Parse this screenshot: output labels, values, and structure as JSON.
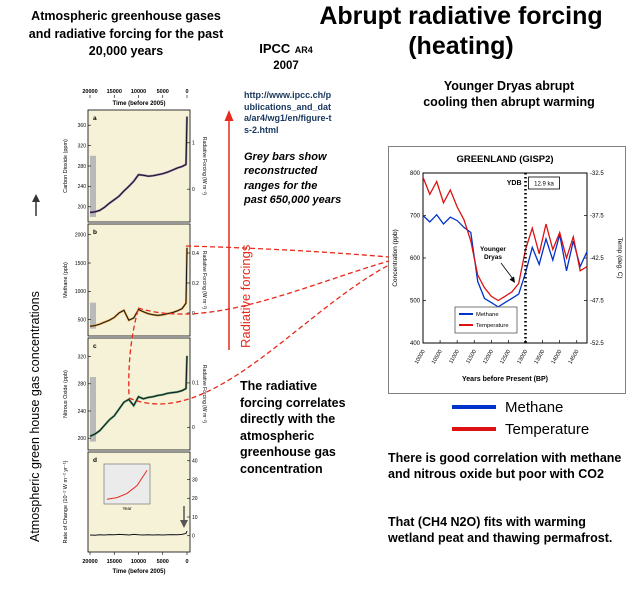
{
  "colors": {
    "accent_red": "#e8291c",
    "url_blue": "#17365d",
    "figure_panel_bg": "#f6f2d8",
    "methane_blue": "#0033cc",
    "temperature_red": "#dd1111"
  },
  "slide": {
    "left_heading": "Atmospheric greenhouse gases and radiative forcing for the past 20,000 years",
    "title_line1": "Abrupt radiative forcing",
    "title_line2": "(heating)",
    "source": {
      "name": "IPCC",
      "edition": "AR4",
      "year": "2007"
    },
    "url": "http://www.ipcc.ch/publications_and_data/ar4/wg1/en/figure-ts-2.html",
    "grey_bars_note": "Grey bars show reconstructed ranges for the past 650,000 years",
    "radiative_forcings_label": "Radiative forcings",
    "ghg_axis_label": "Atmospheric green house gas concentrations",
    "younger_dryas_note": "Younger Dryas abrupt cooling then abrupt warming",
    "correlation_note": "The radiative forcing correlates directly with the atmospheric greenhouse gas concentration",
    "right_note1": "There is good correlation with methane and nitrous oxide but poor with CO2",
    "right_note2": "That (CH4 N2O) fits with warming wetland peat and thawing permafrost.",
    "legend": [
      {
        "label": "Methane",
        "color": "#0033cc"
      },
      {
        "label": "Temperature",
        "color": "#dd1111"
      }
    ]
  },
  "chart_data": [
    {
      "id": "co2",
      "type": "line",
      "panel_letter": "a",
      "ylabel": "Carbon Dioxide (ppm)",
      "ylabel_right": "Radiative Forcing (W m⁻²)",
      "xlabel": "Time (before 2005)",
      "xlim": [
        20000,
        0
      ],
      "ylim": [
        180,
        380
      ],
      "ylim_right": [
        -0.6,
        1.6
      ],
      "x_ticks": [
        20000,
        15000,
        10000,
        5000,
        0
      ],
      "y_ticks": [
        200,
        240,
        280,
        320,
        360
      ],
      "y_ticks_right": [
        0,
        1
      ],
      "x": [
        20000,
        19000,
        18000,
        17000,
        16000,
        15000,
        14000,
        13000,
        12000,
        11000,
        10000,
        9000,
        8000,
        7000,
        6000,
        5000,
        4000,
        3000,
        2000,
        1000,
        200,
        0
      ],
      "values": [
        189,
        190,
        193,
        199,
        207,
        214,
        221,
        231,
        240,
        250,
        263,
        262,
        260,
        261,
        263,
        265,
        268,
        272,
        276,
        279,
        283,
        377
      ],
      "line_color": "#14141c",
      "accent_color": "#7b52a5",
      "grey_bar": {
        "y_from": 180,
        "y_to": 300
      }
    },
    {
      "id": "ch4",
      "type": "line",
      "panel_letter": "b",
      "ylabel": "Methane (ppb)",
      "ylabel_right": "Radiative Forcing (W m⁻²)",
      "xlabel": "Time (before 2005)",
      "xlim": [
        20000,
        0
      ],
      "ylim": [
        300,
        2100
      ],
      "ylim_right": [
        -0.12,
        0.56
      ],
      "x_ticks": [
        20000,
        15000,
        10000,
        5000,
        0
      ],
      "y_ticks": [
        500,
        1000,
        1500,
        2000
      ],
      "y_ticks_right": [
        0,
        0.2,
        0.4
      ],
      "x": [
        20000,
        19000,
        18000,
        17000,
        16000,
        15000,
        14000,
        13000,
        12000,
        11000,
        10000,
        9000,
        8000,
        7000,
        6000,
        5000,
        4000,
        3000,
        2000,
        1000,
        200,
        0
      ],
      "values": [
        385,
        395,
        420,
        455,
        490,
        540,
        620,
        665,
        490,
        530,
        680,
        640,
        605,
        585,
        575,
        585,
        605,
        625,
        655,
        695,
        790,
        1770
      ],
      "line_color": "#14141c",
      "accent_color": "#e09020",
      "grey_bar": {
        "y_from": 340,
        "y_to": 800
      }
    },
    {
      "id": "n2o",
      "type": "line",
      "panel_letter": "c",
      "ylabel": "Nitrous Oxide (ppb)",
      "ylabel_right": "Radiative Forcing (W m⁻²)",
      "xlabel": "Time (before 2005)",
      "xlim": [
        20000,
        0
      ],
      "ylim": [
        190,
        340
      ],
      "ylim_right": [
        -0.04,
        0.19
      ],
      "x_ticks": [
        20000,
        15000,
        10000,
        5000,
        0
      ],
      "y_ticks": [
        200,
        240,
        280,
        320
      ],
      "y_ticks_right": [
        0,
        0.1
      ],
      "x": [
        20000,
        19000,
        18000,
        17000,
        16000,
        15000,
        14000,
        13000,
        12000,
        11000,
        10000,
        9000,
        8000,
        7000,
        6000,
        5000,
        4000,
        3000,
        2000,
        1000,
        200,
        0
      ],
      "values": [
        203,
        206,
        211,
        219,
        227,
        233,
        243,
        253,
        257,
        248,
        261,
        258,
        260,
        261,
        263,
        264,
        266,
        267,
        268,
        270,
        273,
        321
      ],
      "line_color": "#14141c",
      "accent_color": "#2e8b57",
      "grey_bar": {
        "y_from": 195,
        "y_to": 290
      }
    },
    {
      "id": "rate",
      "type": "line",
      "panel_letter": "d",
      "ylabel": "Rate of Change (10⁻² W m⁻² yr⁻¹)",
      "ylabel_right": "",
      "xlabel": "Time (before 2005)",
      "xlim": [
        20000,
        0
      ],
      "ylim": [
        -6,
        42
      ],
      "ylim_right": [
        -6,
        42
      ],
      "x_ticks": [
        20000,
        15000,
        10000,
        5000,
        0
      ],
      "y_ticks": [],
      "y_ticks_right": [
        0,
        10,
        20,
        30,
        40
      ],
      "x": [
        20000,
        19000,
        18000,
        17000,
        16000,
        15000,
        14000,
        13000,
        12000,
        11000,
        10000,
        9000,
        8000,
        7000,
        6000,
        5000,
        4000,
        3000,
        2000,
        1000,
        200,
        0
      ],
      "values": [
        0.4,
        0.3,
        0.5,
        0.4,
        0.6,
        0.5,
        0.7,
        0.6,
        0.4,
        0.7,
        0.5,
        0.4,
        0.5,
        0.4,
        0.5,
        0.4,
        0.5,
        0.6,
        0.5,
        0.7,
        1.2,
        2.5
      ],
      "line_color": "#14141c",
      "inset": {
        "xlabel": "Year",
        "x": [
          1900,
          1925,
          1950,
          1975,
          2000
        ],
        "values": [
          2,
          4,
          9,
          18,
          36
        ],
        "line_color": "#e8291c"
      }
    },
    {
      "id": "gisp2",
      "type": "line",
      "title": "GREENLAND (GISP2)",
      "xlabel": "Years before Present (BP)",
      "ylabel_left": "Concentration (ppb)",
      "ylabel_right": "Temp (deg. C)",
      "xlim": [
        10000,
        14800
      ],
      "ylim_left": [
        400,
        800
      ],
      "ylim_right": [
        -52.5,
        -32.5
      ],
      "x_ticks": [
        10000,
        10500,
        11000,
        11500,
        12000,
        12500,
        13000,
        13500,
        14000,
        14500
      ],
      "y_ticks_left": [
        400,
        500,
        600,
        700,
        800
      ],
      "y_ticks_right": [
        -32.5,
        -37.5,
        -42.5,
        -47.5,
        -52.5
      ],
      "ydb_marker": {
        "x": 13000,
        "label": "YDB",
        "box_label": "12.9 ka"
      },
      "annotation": "Younger Dryas",
      "legend_position": "inside-bottom-left",
      "x": [
        10000,
        10200,
        10400,
        10600,
        10800,
        11000,
        11200,
        11400,
        11600,
        11800,
        12000,
        12200,
        12400,
        12600,
        12800,
        13000,
        13200,
        13400,
        13600,
        13800,
        14000,
        14200,
        14400,
        14600,
        14800
      ],
      "series": [
        {
          "name": "Methane",
          "axis": "left",
          "color": "#0033cc",
          "values": [
            700,
            685,
            702,
            680,
            696,
            688,
            672,
            660,
            545,
            505,
            495,
            485,
            495,
            505,
            515,
            565,
            625,
            585,
            645,
            595,
            655,
            570,
            640,
            580,
            615
          ]
        },
        {
          "name": "Temperature",
          "axis": "right",
          "color": "#dd1111",
          "values": [
            -33,
            -35,
            -33.5,
            -36,
            -34.5,
            -36.5,
            -38,
            -40.5,
            -44.5,
            -46,
            -47,
            -47.5,
            -47,
            -46.5,
            -45.5,
            -41.5,
            -39,
            -42,
            -38.5,
            -41.5,
            -39.5,
            -42.5,
            -40,
            -44,
            -43.5
          ]
        }
      ]
    }
  ]
}
